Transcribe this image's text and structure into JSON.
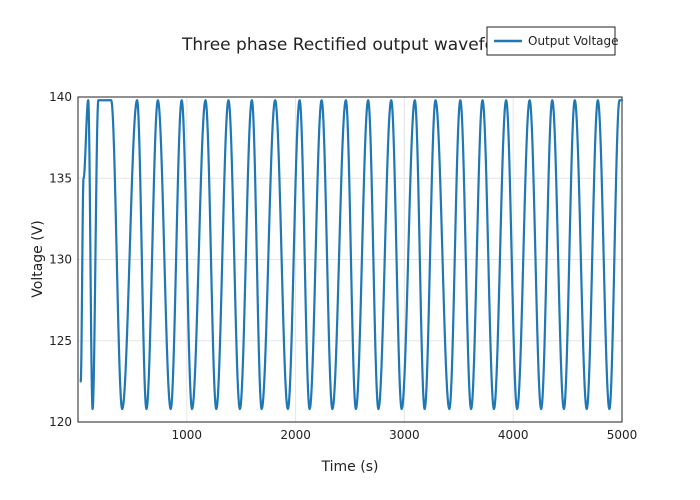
{
  "chart_data": {
    "type": "line",
    "title": "Three phase Rectified output wavefor",
    "xlabel": "Time (s)",
    "ylabel": "Voltage (V)",
    "xlim": [
      0,
      5000
    ],
    "ylim": [
      120,
      140
    ],
    "x_ticks": [
      1000,
      2000,
      3000,
      4000,
      5000
    ],
    "y_ticks": [
      120,
      125,
      130,
      135,
      140
    ],
    "grid": true,
    "legend": "top-right, overlapping title",
    "series": [
      {
        "name": "Output Voltage",
        "color": "#1f77b4",
        "peak_voltage": 139.8,
        "trough_voltage": 120.8,
        "start": [
          25,
          122.5
        ],
        "x": [
          25,
          51,
          94,
          134,
          187,
          305,
          406,
          543,
          629,
          734,
          852,
          953,
          1048,
          1172,
          1271,
          1383,
          1488,
          1598,
          1688,
          1812,
          1929,
          2037,
          2129,
          2239,
          2338,
          2462,
          2554,
          2667,
          2761,
          2879,
          2975,
          3096,
          3186,
          3286,
          3413,
          3514,
          3613,
          3718,
          3823,
          3935,
          4036,
          4151,
          4257,
          4359,
          4466,
          4566,
          4676,
          4778,
          4884,
          4977,
          5000
        ],
        "y": [
          122.5,
          135.0,
          139.8,
          120.8,
          139.8,
          139.8,
          120.8,
          139.8,
          120.8,
          139.8,
          120.8,
          139.8,
          120.8,
          139.8,
          120.8,
          139.8,
          120.8,
          139.8,
          120.8,
          139.8,
          120.8,
          139.8,
          120.8,
          139.8,
          120.8,
          139.8,
          120.8,
          139.8,
          120.8,
          139.8,
          120.8,
          139.8,
          120.8,
          139.8,
          120.8,
          139.8,
          120.8,
          139.8,
          120.8,
          139.8,
          120.8,
          139.8,
          120.8,
          139.8,
          120.8,
          139.8,
          120.8,
          139.8,
          120.8,
          139.8,
          139.8
        ]
      }
    ]
  },
  "colors": {
    "grid": "#e6e6e6",
    "axis": "#222222",
    "series": "#1f77b4"
  }
}
